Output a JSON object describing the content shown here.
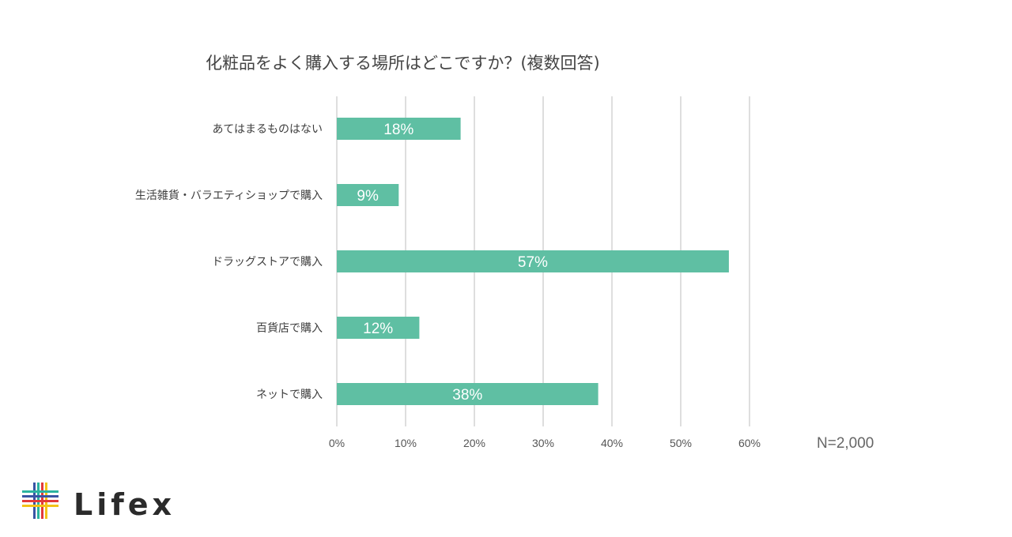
{
  "chart_data": {
    "type": "bar",
    "orientation": "horizontal",
    "title": "化粧品をよく購入する場所はどこですか？(複数回答)",
    "categories": [
      "あてはまるものはない",
      "生活雑貨・バラエティショップで購入",
      "ドラッグストアで購入",
      "百貨店で購入",
      "ネットで購入"
    ],
    "values": [
      18,
      9,
      57,
      12,
      38
    ],
    "data_labels": [
      "18%",
      "9%",
      "57%",
      "12%",
      "38%"
    ],
    "xlim": [
      0,
      60
    ],
    "x_ticks": [
      0,
      10,
      20,
      30,
      40,
      50,
      60
    ],
    "x_tick_labels": [
      "0%",
      "10%",
      "20%",
      "30%",
      "40%",
      "50%",
      "60%"
    ],
    "grid": "vertical",
    "bar_color": "#5fbfa3",
    "note": "N=2,000"
  },
  "brand": {
    "name": "Lifex",
    "colors": [
      "#3a55a4",
      "#2bb3a0",
      "#e23a3a",
      "#f3c318"
    ]
  }
}
